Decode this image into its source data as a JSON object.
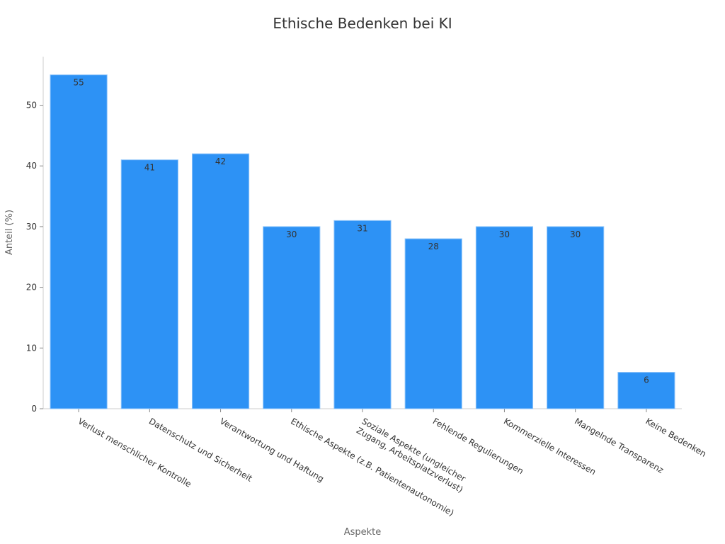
{
  "chart_data": {
    "type": "bar",
    "title": "Ethische Bedenken bei KI",
    "xlabel": "Aspekte",
    "ylabel": "Anteil (%)",
    "categories": [
      [
        "Verlust menschlicher Kontrolle"
      ],
      [
        "Datenschutz und Sicherheit"
      ],
      [
        "Verantwortung und Haftung"
      ],
      [
        "Ethische Aspekte (z.B. Patientenautonomie)"
      ],
      [
        "Soziale Aspekte (ungleicher",
        "Zugang, Arbeitsplatzverlust)"
      ],
      [
        "Fehlende Regulierungen"
      ],
      [
        "Kommerzielle Interessen"
      ],
      [
        "Mangelnde Transparenz"
      ],
      [
        "Keine Bedenken"
      ]
    ],
    "values": [
      55,
      41,
      42,
      30,
      31,
      28,
      30,
      30,
      6
    ],
    "ylim": [
      0,
      58
    ],
    "yticks": [
      0,
      10,
      20,
      30,
      40,
      50
    ],
    "grid": false,
    "colors": {
      "bar": "#2d92f5"
    }
  }
}
